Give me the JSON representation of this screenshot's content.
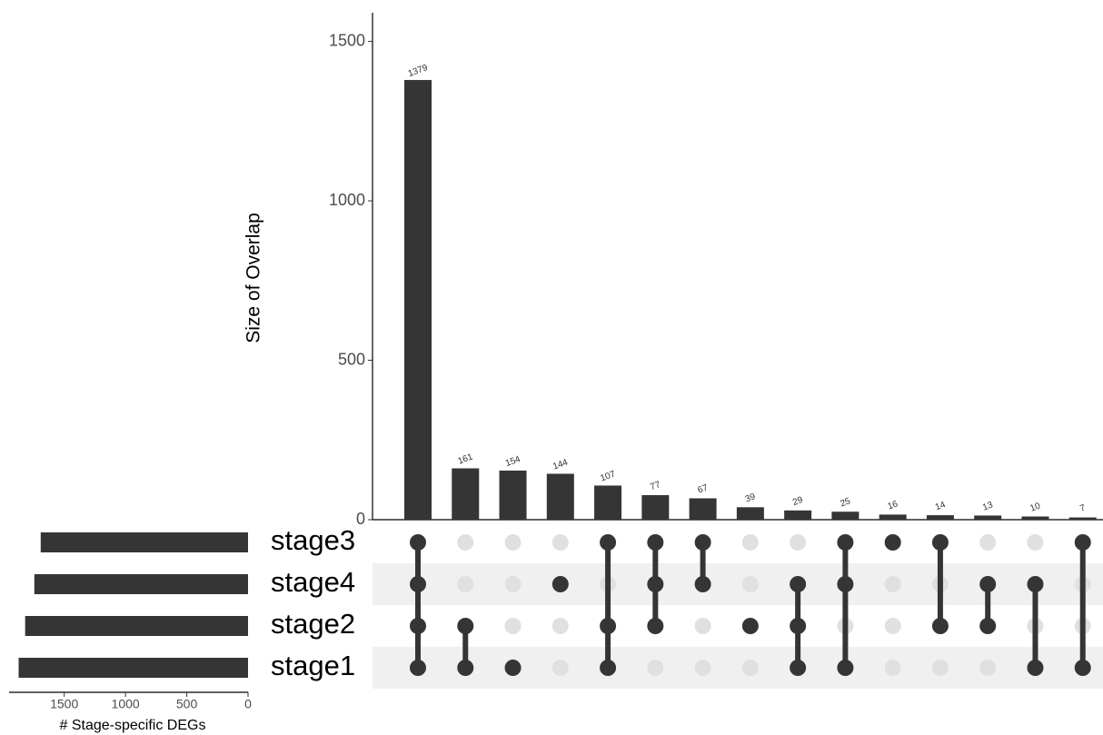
{
  "chart_data": {
    "type": "upset",
    "y_label": "Size of Overlap",
    "ylim": [
      0,
      1590
    ],
    "yticks": [
      0,
      500,
      1000,
      1500
    ],
    "bar_color": "#353535",
    "dot_color": "#353535",
    "inactive_dot_color": "#e0e0e0",
    "sets": [
      "stage3",
      "stage4",
      "stage2",
      "stage1"
    ],
    "set_sizes": [
      1692,
      1744,
      1819,
      1872
    ],
    "set_size_label": "# Stage-specific DEGs",
    "set_size_xlim": [
      0,
      1950
    ],
    "set_size_xticks": [
      1500,
      1000,
      500,
      0
    ],
    "intersections": [
      {
        "sets": [
          "stage3",
          "stage4",
          "stage2",
          "stage1"
        ],
        "value": 1379
      },
      {
        "sets": [
          "stage2",
          "stage1"
        ],
        "value": 161
      },
      {
        "sets": [
          "stage1"
        ],
        "value": 154
      },
      {
        "sets": [
          "stage4"
        ],
        "value": 144
      },
      {
        "sets": [
          "stage3",
          "stage2",
          "stage1"
        ],
        "value": 107
      },
      {
        "sets": [
          "stage3",
          "stage4",
          "stage2"
        ],
        "value": 77
      },
      {
        "sets": [
          "stage3",
          "stage4"
        ],
        "value": 67
      },
      {
        "sets": [
          "stage2"
        ],
        "value": 39
      },
      {
        "sets": [
          "stage4",
          "stage2",
          "stage1"
        ],
        "value": 29
      },
      {
        "sets": [
          "stage3",
          "stage4",
          "stage1"
        ],
        "value": 25
      },
      {
        "sets": [
          "stage3"
        ],
        "value": 16
      },
      {
        "sets": [
          "stage3",
          "stage2"
        ],
        "value": 14
      },
      {
        "sets": [
          "stage4",
          "stage2"
        ],
        "value": 13
      },
      {
        "sets": [
          "stage4",
          "stage1"
        ],
        "value": 10
      },
      {
        "sets": [
          "stage3",
          "stage1"
        ],
        "value": 7
      }
    ]
  }
}
